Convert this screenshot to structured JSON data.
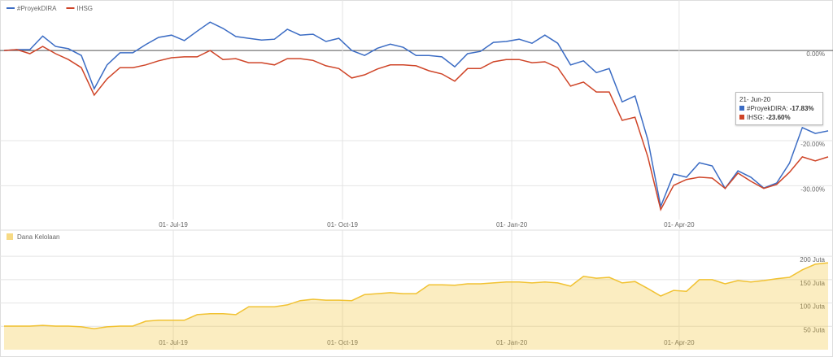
{
  "chart_data": [
    {
      "type": "line",
      "x": [
        "2019-03-31",
        "2019-04-07",
        "2019-04-14",
        "2019-04-21",
        "2019-04-28",
        "2019-05-05",
        "2019-05-12",
        "2019-05-19",
        "2019-05-26",
        "2019-06-02",
        "2019-06-09",
        "2019-06-16",
        "2019-06-23",
        "2019-06-30",
        "2019-07-07",
        "2019-07-14",
        "2019-07-21",
        "2019-07-28",
        "2019-08-04",
        "2019-08-11",
        "2019-08-18",
        "2019-08-25",
        "2019-09-01",
        "2019-09-08",
        "2019-09-15",
        "2019-09-22",
        "2019-09-29",
        "2019-10-06",
        "2019-10-13",
        "2019-10-20",
        "2019-10-27",
        "2019-11-03",
        "2019-11-10",
        "2019-11-17",
        "2019-11-24",
        "2019-12-01",
        "2019-12-08",
        "2019-12-15",
        "2019-12-22",
        "2019-12-29",
        "2020-01-05",
        "2020-01-12",
        "2020-01-19",
        "2020-01-26",
        "2020-02-02",
        "2020-02-09",
        "2020-02-16",
        "2020-02-23",
        "2020-03-01",
        "2020-03-08",
        "2020-03-15",
        "2020-03-22",
        "2020-03-29",
        "2020-04-05",
        "2020-04-12",
        "2020-04-19",
        "2020-04-26",
        "2020-05-03",
        "2020-05-10",
        "2020-05-17",
        "2020-05-24",
        "2020-05-31",
        "2020-06-07",
        "2020-06-14",
        "2020-06-21"
      ],
      "series": [
        {
          "name": "#ProyekDIRA",
          "color": "#3b6cc4",
          "values": [
            0,
            0.2,
            0.2,
            3.2,
            0.9,
            0.4,
            -1.1,
            -8.5,
            -3.2,
            -0.5,
            -0.5,
            1.3,
            2.9,
            3.4,
            2.2,
            4.3,
            6.3,
            4.9,
            3.1,
            2.7,
            2.3,
            2.5,
            4.7,
            3.4,
            3.6,
            2.0,
            2.7,
            0,
            -1.1,
            0.5,
            1.4,
            0.7,
            -1.1,
            -1.1,
            -1.4,
            -3.6,
            -0.7,
            -0.2,
            1.8,
            2.0,
            2.5,
            1.6,
            3.4,
            1.6,
            -3.2,
            -2.3,
            -4.9,
            -4.0,
            -11.4,
            -10.1,
            -19.8,
            -34.6,
            -27.4,
            -28.1,
            -24.9,
            -25.6,
            -30.6,
            -26.7,
            -28.1,
            -30.5,
            -29.4,
            -25.0,
            -17.1,
            -18.4,
            -17.83
          ]
        },
        {
          "name": "IHSG",
          "color": "#cf4427",
          "values": [
            0,
            0.2,
            -0.7,
            0.9,
            -0.7,
            -2.0,
            -3.8,
            -9.9,
            -6.3,
            -3.8,
            -3.8,
            -3.2,
            -2.3,
            -1.6,
            -1.4,
            -1.4,
            0,
            -2.0,
            -1.8,
            -2.7,
            -2.7,
            -3.2,
            -1.8,
            -1.8,
            -2.2,
            -3.4,
            -4.0,
            -6.1,
            -5.4,
            -4.1,
            -3.2,
            -3.2,
            -3.4,
            -4.5,
            -5.2,
            -6.8,
            -4.0,
            -4.0,
            -2.5,
            -2.0,
            -2.0,
            -2.7,
            -2.5,
            -3.8,
            -7.9,
            -7.0,
            -9.2,
            -9.2,
            -15.5,
            -14.8,
            -23.6,
            -35.3,
            -29.9,
            -28.6,
            -28.1,
            -28.3,
            -30.6,
            -27.2,
            -29.0,
            -30.6,
            -29.7,
            -27.0,
            -23.6,
            -24.5,
            -23.6
          ]
        }
      ],
      "xlim": [
        "2019-03-31",
        "2020-06-21"
      ],
      "xticks": [
        {
          "value": "2019-07-01",
          "label": "01- Jul-19"
        },
        {
          "value": "2019-10-01",
          "label": "01- Oct-19"
        },
        {
          "value": "2020-01-01",
          "label": "01- Jan-20"
        },
        {
          "value": "2020-04-01",
          "label": "01- Apr-20"
        }
      ],
      "ylim": [
        -37.5,
        11.2
      ],
      "yticks": [
        {
          "value": 0,
          "label": "0.00%"
        },
        {
          "value": -20,
          "label": "-20.00%"
        },
        {
          "value": -30,
          "label": "-30.00%"
        }
      ],
      "grid": true,
      "legend": "top-left",
      "tooltip": {
        "title": "21- Jun-20",
        "value_labels": [
          "-17.83%",
          "-23.60%"
        ]
      }
    },
    {
      "type": "area",
      "x": [
        "2019-03-31",
        "2019-04-07",
        "2019-04-14",
        "2019-04-21",
        "2019-04-28",
        "2019-05-05",
        "2019-05-12",
        "2019-05-19",
        "2019-05-26",
        "2019-06-02",
        "2019-06-09",
        "2019-06-16",
        "2019-06-23",
        "2019-06-30",
        "2019-07-07",
        "2019-07-14",
        "2019-07-21",
        "2019-07-28",
        "2019-08-04",
        "2019-08-11",
        "2019-08-18",
        "2019-08-25",
        "2019-09-01",
        "2019-09-08",
        "2019-09-15",
        "2019-09-22",
        "2019-09-29",
        "2019-10-06",
        "2019-10-13",
        "2019-10-20",
        "2019-10-27",
        "2019-11-03",
        "2019-11-10",
        "2019-11-17",
        "2019-11-24",
        "2019-12-01",
        "2019-12-08",
        "2019-12-15",
        "2019-12-22",
        "2019-12-29",
        "2020-01-05",
        "2020-01-12",
        "2020-01-19",
        "2020-01-26",
        "2020-02-02",
        "2020-02-09",
        "2020-02-16",
        "2020-02-23",
        "2020-03-01",
        "2020-03-08",
        "2020-03-15",
        "2020-03-22",
        "2020-03-29",
        "2020-04-05",
        "2020-04-12",
        "2020-04-19",
        "2020-04-26",
        "2020-05-03",
        "2020-05-10",
        "2020-05-17",
        "2020-05-24",
        "2020-05-31",
        "2020-06-07",
        "2020-06-14",
        "2020-06-21"
      ],
      "series": [
        {
          "name": "Dana Kelolaan",
          "color": "#f1c232",
          "values": [
            50.5,
            50.5,
            50.5,
            52,
            50.5,
            50.5,
            49,
            45,
            49,
            50.5,
            50.5,
            61,
            63,
            63,
            63,
            75,
            77,
            77,
            75,
            92,
            92,
            92,
            96,
            105,
            108,
            106,
            106,
            105,
            118,
            120,
            122,
            120,
            120,
            139,
            139,
            138,
            141,
            141,
            143,
            145,
            145,
            143,
            145,
            143,
            136,
            157,
            153,
            155,
            143,
            146,
            131,
            115,
            127,
            125,
            150,
            150,
            141,
            148,
            145,
            148,
            152,
            155,
            171,
            183,
            186
          ]
        }
      ],
      "xlim": [
        "2019-03-31",
        "2020-06-21"
      ],
      "xticks": [
        {
          "value": "2019-07-01",
          "label": "01- Jul-19"
        },
        {
          "value": "2019-10-01",
          "label": "01- Oct-19"
        },
        {
          "value": "2020-01-01",
          "label": "01- Jan-20"
        },
        {
          "value": "2020-04-01",
          "label": "01- Apr-20"
        }
      ],
      "ylim": [
        0,
        256
      ],
      "yticks": [
        {
          "value": 50,
          "label": "50 Juta"
        },
        {
          "value": 100,
          "label": "100 Juta"
        },
        {
          "value": 150,
          "label": "150 Juta"
        },
        {
          "value": 200,
          "label": "200 Juta"
        }
      ],
      "grid": true,
      "legend": "top-left"
    }
  ]
}
